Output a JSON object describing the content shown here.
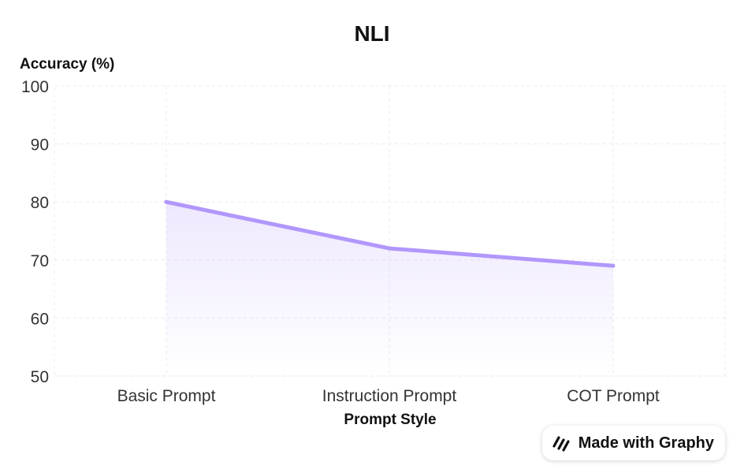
{
  "chart_data": {
    "type": "area",
    "title": "NLI",
    "xlabel": "Prompt Style",
    "ylabel": "Accuracy (%)",
    "categories": [
      "Basic Prompt",
      "Instruction Prompt",
      "COT Prompt"
    ],
    "values": [
      80,
      72,
      69
    ],
    "ylim": [
      50,
      100
    ],
    "yticks": [
      50,
      60,
      70,
      80,
      90,
      100
    ],
    "grid": true,
    "line_color": "#b197fc"
  },
  "badge": {
    "text": "Made with Graphy",
    "icon": "graphy-logo-icon"
  }
}
